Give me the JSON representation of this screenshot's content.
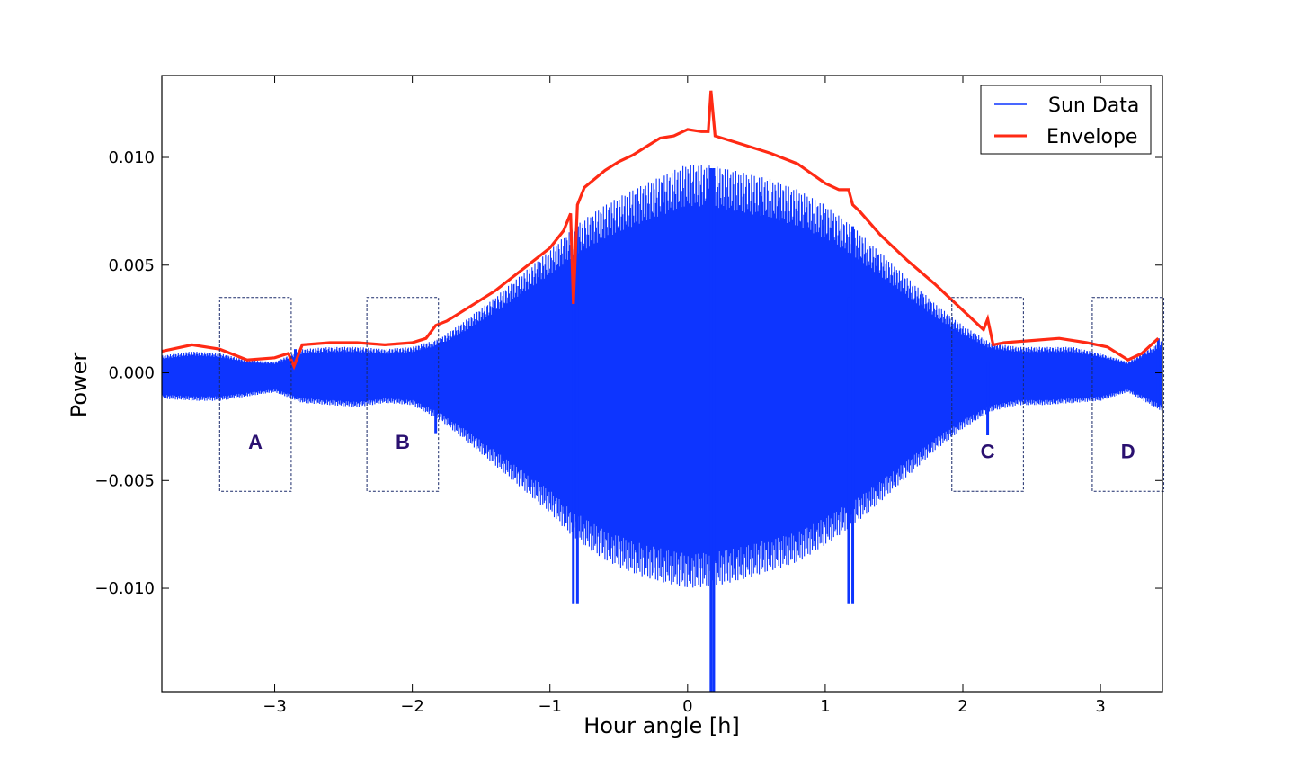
{
  "chart_data": {
    "type": "line",
    "xlabel": "Hour angle [h]",
    "ylabel": "Power",
    "xlim": [
      -3.82,
      3.45
    ],
    "ylim": [
      -0.0148,
      0.0138
    ],
    "grid": false,
    "legend_placement": "top-right",
    "x_ticks": [
      -3,
      -2,
      -1,
      0,
      1,
      2,
      3
    ],
    "x_tick_labels": [
      "−3",
      "−2",
      "−1",
      "0",
      "1",
      "2",
      "3"
    ],
    "y_ticks": [
      -0.01,
      -0.005,
      0.0,
      0.005,
      0.01
    ],
    "y_tick_labels": [
      "−0.010",
      "−0.005",
      "0.000",
      "0.005",
      "0.010"
    ],
    "series": [
      {
        "name": "Sun Data",
        "color": "#0d35ff",
        "style": "rapidly oscillating signal",
        "upper_envelope": {
          "x": [
            -3.82,
            -3.6,
            -3.4,
            -3.2,
            -3.0,
            -2.8,
            -2.6,
            -2.4,
            -2.2,
            -2.0,
            -1.8,
            -1.6,
            -1.4,
            -1.2,
            -1.0,
            -0.9,
            -0.8,
            -0.6,
            -0.4,
            -0.2,
            0.0,
            0.2,
            0.4,
            0.6,
            0.8,
            1.0,
            1.2,
            1.4,
            1.6,
            1.8,
            2.0,
            2.2,
            2.4,
            2.6,
            2.8,
            3.0,
            3.2,
            3.45
          ],
          "y": [
            0.0008,
            0.001,
            0.0009,
            0.0006,
            0.0005,
            0.0011,
            0.0012,
            0.0012,
            0.0011,
            0.0012,
            0.0016,
            0.0025,
            0.0035,
            0.0046,
            0.0057,
            0.0063,
            0.0069,
            0.0078,
            0.0085,
            0.0091,
            0.0097,
            0.0096,
            0.0093,
            0.009,
            0.0085,
            0.0078,
            0.0068,
            0.0056,
            0.0044,
            0.0032,
            0.0022,
            0.0014,
            0.0012,
            0.0012,
            0.0012,
            0.0009,
            0.0005,
            0.0015
          ]
        },
        "lower_envelope": {
          "x": [
            -3.82,
            -3.6,
            -3.4,
            -3.2,
            -3.0,
            -2.8,
            -2.6,
            -2.4,
            -2.2,
            -2.0,
            -1.8,
            -1.6,
            -1.4,
            -1.2,
            -1.0,
            -0.9,
            -0.8,
            -0.6,
            -0.4,
            -0.2,
            0.0,
            0.2,
            0.4,
            0.6,
            0.8,
            1.0,
            1.2,
            1.4,
            1.6,
            1.8,
            2.0,
            2.2,
            2.4,
            2.6,
            2.8,
            3.0,
            3.2,
            3.45
          ],
          "y": [
            -0.0012,
            -0.0013,
            -0.0013,
            -0.0011,
            -0.0009,
            -0.0014,
            -0.0015,
            -0.0016,
            -0.0014,
            -0.0015,
            -0.0022,
            -0.0032,
            -0.0043,
            -0.0054,
            -0.0065,
            -0.0072,
            -0.0078,
            -0.0087,
            -0.0093,
            -0.0097,
            -0.01,
            -0.0099,
            -0.0096,
            -0.0092,
            -0.0088,
            -0.008,
            -0.0071,
            -0.006,
            -0.0048,
            -0.0036,
            -0.0026,
            -0.0018,
            -0.0015,
            -0.0015,
            -0.0014,
            -0.0013,
            -0.0009,
            -0.0018
          ]
        },
        "spikes": [
          {
            "x": -2.85,
            "y_min": -0.0012,
            "y_max": 0.0011
          },
          {
            "x": -1.83,
            "y_min": -0.0028,
            "y_max": 0.0006
          },
          {
            "x": -0.83,
            "y_min": -0.0107,
            "y_max": 0.0032
          },
          {
            "x": -0.8,
            "y_min": -0.0107,
            "y_max": 0.0068
          },
          {
            "x": 0.17,
            "y_min": -0.0148,
            "y_max": 0.0095
          },
          {
            "x": 0.19,
            "y_min": -0.0148,
            "y_max": 0.0095
          },
          {
            "x": 1.17,
            "y_min": -0.0107,
            "y_max": 0.0035
          },
          {
            "x": 1.2,
            "y_min": -0.0107,
            "y_max": 0.0068
          },
          {
            "x": 2.18,
            "y_min": -0.0029,
            "y_max": 0.0005
          },
          {
            "x": 3.42,
            "y_min": -0.0016,
            "y_max": 0.0016
          }
        ]
      },
      {
        "name": "Envelope",
        "color": "#ff2a14",
        "style": "stepped line",
        "x": [
          -3.82,
          -3.6,
          -3.4,
          -3.2,
          -3.0,
          -2.9,
          -2.86,
          -2.8,
          -2.6,
          -2.4,
          -2.2,
          -2.0,
          -1.9,
          -1.83,
          -1.75,
          -1.6,
          -1.4,
          -1.2,
          -1.0,
          -0.9,
          -0.85,
          -0.83,
          -0.8,
          -0.75,
          -0.6,
          -0.5,
          -0.4,
          -0.3,
          -0.2,
          -0.1,
          0.0,
          0.1,
          0.15,
          0.17,
          0.2,
          0.3,
          0.4,
          0.6,
          0.8,
          1.0,
          1.1,
          1.17,
          1.2,
          1.25,
          1.4,
          1.6,
          1.8,
          2.0,
          2.15,
          2.18,
          2.22,
          2.3,
          2.5,
          2.7,
          2.9,
          3.05,
          3.2,
          3.3,
          3.42
        ],
        "y": [
          0.001,
          0.0013,
          0.0011,
          0.0006,
          0.0007,
          0.0009,
          0.0003,
          0.0013,
          0.0014,
          0.0014,
          0.0013,
          0.0014,
          0.0016,
          0.0022,
          0.0024,
          0.003,
          0.0038,
          0.0048,
          0.0058,
          0.0066,
          0.0074,
          0.0032,
          0.0078,
          0.0086,
          0.0094,
          0.0098,
          0.0101,
          0.0105,
          0.0109,
          0.011,
          0.0113,
          0.0112,
          0.0112,
          0.0131,
          0.011,
          0.0108,
          0.0106,
          0.0102,
          0.0097,
          0.0088,
          0.0085,
          0.0085,
          0.0078,
          0.0075,
          0.0064,
          0.0052,
          0.0041,
          0.0029,
          0.002,
          0.0025,
          0.0013,
          0.0014,
          0.0015,
          0.0016,
          0.0014,
          0.0012,
          0.0006,
          0.0009,
          0.0016
        ]
      }
    ],
    "regions": [
      {
        "label": "A",
        "x0": -3.4,
        "x1": -2.88,
        "y0": -0.0055,
        "y1": 0.0035
      },
      {
        "label": "B",
        "x0": -2.33,
        "x1": -1.81,
        "y0": -0.0055,
        "y1": 0.0035
      },
      {
        "label": "C",
        "x0": 1.92,
        "x1": 2.44,
        "y0": -0.0055,
        "y1": 0.0035
      },
      {
        "label": "D",
        "x0": 2.94,
        "x1": 3.46,
        "y0": -0.0055,
        "y1": 0.0035
      }
    ],
    "region_label_color": "#2a1070"
  }
}
